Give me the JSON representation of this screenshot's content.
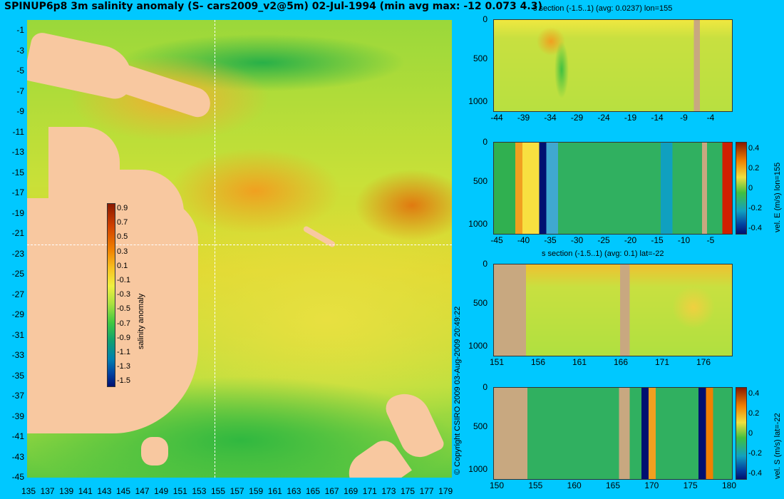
{
  "title": "SPINUP6p8 3m salinity anomaly (S- cars2009_v2@5m) 02-Jul-1994 (min avg max: -12 0.073 4.3)",
  "copyright": "© Copyright CSIRO 2009   03-Aug-2009 20:49:22",
  "map": {
    "lat_ticks": [
      "-1",
      "-3",
      "-5",
      "-7",
      "-9",
      "-11",
      "-13",
      "-15",
      "-17",
      "-19",
      "-21",
      "-23",
      "-25",
      "-27",
      "-29",
      "-31",
      "-33",
      "-35",
      "-37",
      "-39",
      "-41",
      "-43",
      "-45"
    ],
    "lon_ticks": [
      "135",
      "137",
      "139",
      "141",
      "143",
      "145",
      "147",
      "149",
      "151",
      "153",
      "155",
      "157",
      "159",
      "161",
      "163",
      "165",
      "167",
      "169",
      "171",
      "173",
      "175",
      "177",
      "179"
    ],
    "crosshair": {
      "lon": "155",
      "lat": "-22"
    },
    "colorbar": {
      "ticks": [
        "0.9",
        "0.7",
        "0.5",
        "0.3",
        "0.1",
        "-0.1",
        "-0.3",
        "-0.5",
        "-0.7",
        "-0.9",
        "-1.1",
        "-1.3",
        "-1.5"
      ],
      "label": "salinity anomaly",
      "colors": [
        "#8b1a00",
        "#d04000",
        "#f08000",
        "#f8c020",
        "#f0f040",
        "#a8e040",
        "#40c840",
        "#10a070",
        "#0080b0",
        "#0040a0",
        "#001070"
      ]
    }
  },
  "panels": [
    {
      "title": "s section (-1.5..1) (avg: 0.0237) lon=155",
      "yticks": [
        "0",
        "500",
        "1000"
      ],
      "xticks": [
        "-44",
        "-39",
        "-34",
        "-29",
        "-24",
        "-19",
        "-14",
        "-9",
        "-4"
      ],
      "colorbar": null
    },
    {
      "title": "",
      "yticks": [
        "0",
        "500",
        "1000"
      ],
      "xticks": [
        "-45",
        "-40",
        "-35",
        "-30",
        "-25",
        "-20",
        "-15",
        "-10",
        "-5"
      ],
      "colorbar": {
        "ticks": [
          "0.4",
          "0.2",
          "0",
          "-0.2",
          "-0.4"
        ],
        "label": "vel. E (m/s) lon=155"
      }
    },
    {
      "title": "s section (-1.5..1) (avg: 0.1) lat=-22",
      "yticks": [
        "0",
        "500",
        "1000"
      ],
      "xticks": [
        "151",
        "156",
        "161",
        "166",
        "171",
        "176"
      ],
      "colorbar": null
    },
    {
      "title": "",
      "yticks": [
        "0",
        "500",
        "1000"
      ],
      "xticks": [
        "150",
        "155",
        "160",
        "165",
        "170",
        "175",
        "180"
      ],
      "colorbar": {
        "ticks": [
          "0.4",
          "0.2",
          "0",
          "-0.2",
          "-0.4"
        ],
        "label": "vel. S (m/s) lat=-22"
      }
    }
  ]
}
